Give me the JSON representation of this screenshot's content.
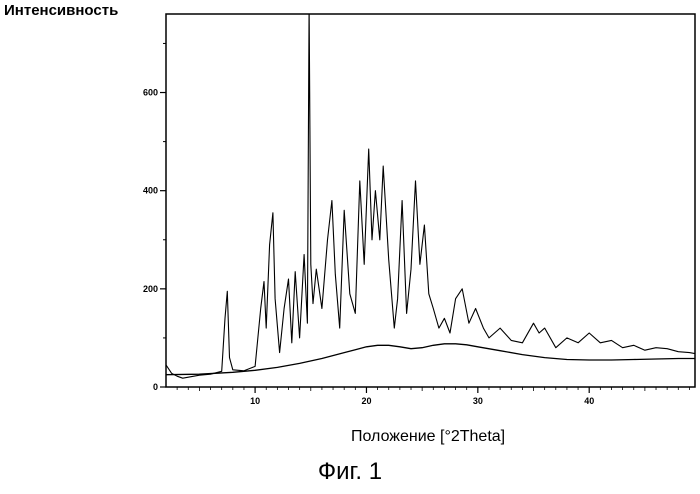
{
  "chart_data": {
    "type": "line",
    "ylabel": "Интенсивность",
    "xlabel": "Положение [°2Theta]",
    "caption": "Фиг. 1",
    "xlim": [
      2,
      49.5
    ],
    "ylim": [
      0,
      760
    ],
    "x_ticks": [
      10,
      20,
      30,
      40
    ],
    "y_ticks": [
      0,
      200,
      400,
      600
    ],
    "grid": false,
    "series": [
      {
        "x": [
          2.0,
          2.5,
          3.0,
          3.5,
          4.0,
          5.0,
          6.0,
          7.0,
          7.3,
          7.5,
          7.7,
          8.0,
          9.0,
          10.0,
          10.5,
          10.8,
          11.0,
          11.3,
          11.6,
          11.8,
          12.2,
          12.6,
          13.0,
          13.3,
          13.6,
          14.0,
          14.4,
          14.7,
          14.85,
          15.0,
          15.2,
          15.5,
          16.0,
          16.5,
          16.9,
          17.2,
          17.6,
          18.0,
          18.5,
          19.0,
          19.4,
          19.8,
          20.2,
          20.5,
          20.8,
          21.2,
          21.5,
          22.0,
          22.5,
          22.8,
          23.2,
          23.6,
          24.0,
          24.4,
          24.8,
          25.2,
          25.6,
          26.0,
          26.5,
          27.0,
          27.5,
          28.0,
          28.6,
          29.2,
          29.8,
          30.5,
          31.0,
          32.0,
          33.0,
          34.0,
          35.0,
          35.5,
          36.0,
          37.0,
          38.0,
          39.0,
          40.0,
          41.0,
          42.0,
          43.0,
          44.0,
          45.0,
          46.0,
          47.0,
          48.0,
          49.0,
          49.5
        ],
        "y": [
          45,
          28,
          22,
          18,
          20,
          24,
          26,
          32,
          140,
          195,
          60,
          35,
          33,
          42,
          160,
          215,
          120,
          290,
          355,
          180,
          70,
          160,
          220,
          90,
          235,
          100,
          270,
          130,
          780,
          250,
          170,
          240,
          160,
          300,
          380,
          230,
          120,
          360,
          190,
          150,
          420,
          250,
          485,
          300,
          400,
          300,
          450,
          260,
          120,
          180,
          380,
          150,
          240,
          420,
          250,
          330,
          190,
          160,
          120,
          140,
          110,
          180,
          200,
          130,
          160,
          120,
          100,
          120,
          95,
          90,
          130,
          110,
          120,
          80,
          100,
          90,
          110,
          90,
          95,
          80,
          85,
          75,
          80,
          78,
          72,
          70,
          68
        ]
      },
      {
        "x": [
          2.0,
          5.0,
          8.0,
          10.0,
          12.0,
          14.0,
          16.0,
          18.0,
          19.0,
          20.0,
          21.0,
          22.0,
          23.0,
          24.0,
          25.0,
          26.0,
          27.0,
          28.0,
          29.0,
          30.0,
          32.0,
          34.0,
          36.0,
          38.0,
          40.0,
          42.0,
          44.0,
          46.0,
          48.0,
          49.5
        ],
        "y": [
          25,
          26,
          30,
          34,
          40,
          48,
          58,
          70,
          76,
          82,
          85,
          85,
          82,
          78,
          80,
          85,
          88,
          88,
          86,
          82,
          74,
          66,
          60,
          56,
          55,
          55,
          56,
          57,
          58,
          58
        ]
      }
    ]
  }
}
